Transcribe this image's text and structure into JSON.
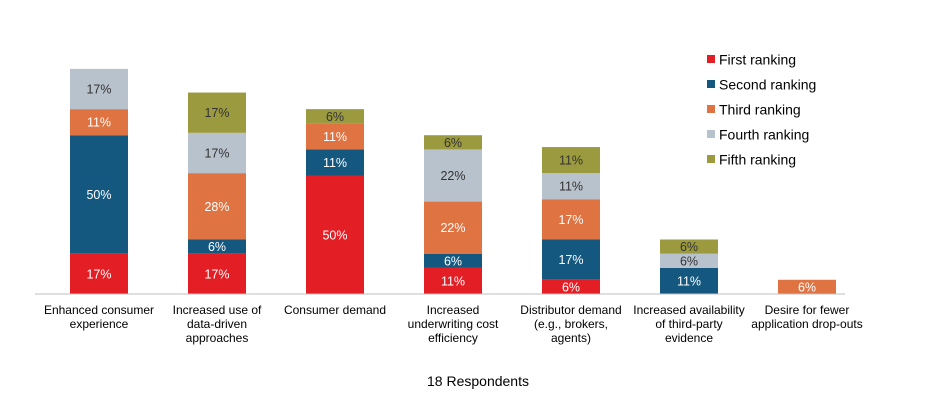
{
  "chart_data": {
    "type": "bar",
    "stacked": true,
    "title": "",
    "xlabel": "18 Respondents",
    "ylabel": "",
    "categories": [
      [
        "Enhanced consumer",
        "experience"
      ],
      [
        "Increased use of",
        "data-driven",
        "approaches"
      ],
      [
        "Consumer demand"
      ],
      [
        "Increased",
        "underwriting cost",
        "efficiency"
      ],
      [
        "Distributor demand",
        "(e.g., brokers,",
        "agents)"
      ],
      [
        "Increased availability",
        "of third-party",
        "evidence"
      ],
      [
        "Desire for fewer",
        "application drop-outs"
      ]
    ],
    "series": [
      {
        "name": "First ranking",
        "color": "#e31e25",
        "values": [
          17,
          17,
          50,
          11,
          6,
          0,
          0
        ],
        "labels": [
          "17%",
          "17%",
          "50%",
          "11%",
          "6%",
          "",
          ""
        ]
      },
      {
        "name": "Second ranking",
        "color": "#14587f",
        "values": [
          50,
          6,
          11,
          6,
          17,
          11,
          0
        ],
        "labels": [
          "50%",
          "6%",
          "11%",
          "6%",
          "17%",
          "11%",
          ""
        ]
      },
      {
        "name": "Third ranking",
        "color": "#df7342",
        "values": [
          11,
          28,
          11,
          22,
          17,
          0,
          6
        ],
        "labels": [
          "11%",
          "28%",
          "11%",
          "22%",
          "17%",
          "",
          "6%"
        ]
      },
      {
        "name": "Fourth ranking",
        "color": "#b8c2cc",
        "values": [
          17,
          17,
          0,
          22,
          11,
          6,
          0
        ],
        "labels": [
          "17%",
          "17%",
          "",
          "22%",
          "11%",
          "6%",
          ""
        ]
      },
      {
        "name": "Fifth ranking",
        "color": "#9c9a3f",
        "values": [
          0,
          17,
          6,
          6,
          11,
          6,
          0
        ],
        "labels": [
          "",
          "17%",
          "6%",
          "6%",
          "11%",
          "6%",
          ""
        ]
      }
    ],
    "legend_position": "top-right",
    "grid": false,
    "ylim": [
      0,
      100
    ]
  }
}
